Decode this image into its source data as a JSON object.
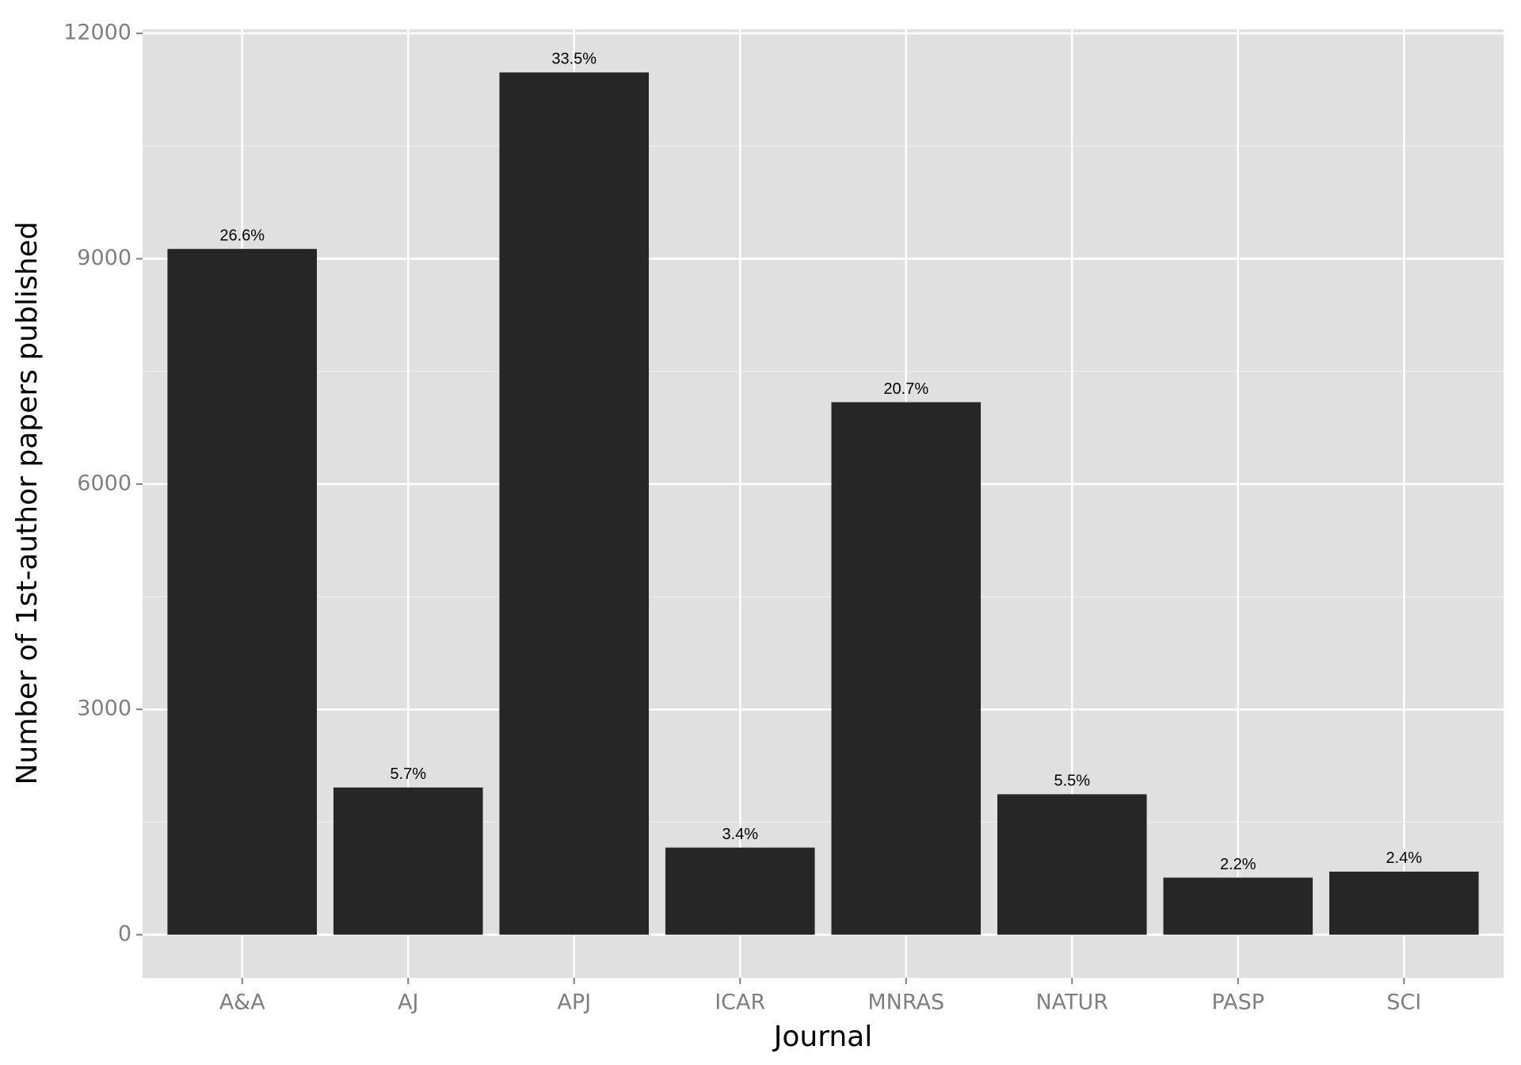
{
  "chart_data": {
    "type": "bar",
    "x_label": "Journal",
    "y_label": "Number of 1st-author papers published",
    "categories": [
      "A&A",
      "AJ",
      "APJ",
      "ICAR",
      "MNRAS",
      "NATUR",
      "PASP",
      "SCI"
    ],
    "values": [
      9130,
      1960,
      11480,
      1160,
      7090,
      1870,
      760,
      840
    ],
    "labels": [
      "26.6%",
      "5.7%",
      "33.5%",
      "3.4%",
      "20.7%",
      "5.5%",
      "2.2%",
      "2.4%"
    ],
    "color": "#262626",
    "ylim": [
      -574,
      12054
    ],
    "yticks": [
      0,
      3000,
      6000,
      9000,
      12000
    ],
    "yminor": [
      1500,
      4500,
      7500,
      10500
    ],
    "grid": true
  }
}
